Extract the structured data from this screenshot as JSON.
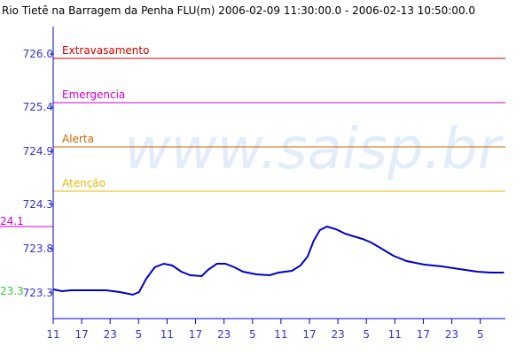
{
  "chart_data": {
    "type": "line",
    "title": "Rio Tietê na Barragem da Penha FLU(m) 2006-02-09 11:30:00.0 - 2006-02-13 10:50:00.0",
    "watermark": "www.saisp.br",
    "xlim": [
      0,
      95.3
    ],
    "ylim": [
      723.01,
      726.31
    ],
    "xticks": [
      {
        "value": 0,
        "label": "11"
      },
      {
        "value": 6,
        "label": "17"
      },
      {
        "value": 12,
        "label": "23"
      },
      {
        "value": 18,
        "label": "5"
      },
      {
        "value": 24,
        "label": "11"
      },
      {
        "value": 30,
        "label": "17"
      },
      {
        "value": 36,
        "label": "23"
      },
      {
        "value": 42,
        "label": "5"
      },
      {
        "value": 48,
        "label": "11"
      },
      {
        "value": 54,
        "label": "17"
      },
      {
        "value": 60,
        "label": "23"
      },
      {
        "value": 66,
        "label": "5"
      },
      {
        "value": 72,
        "label": "11"
      },
      {
        "value": 78,
        "label": "17"
      },
      {
        "value": 84,
        "label": "23"
      },
      {
        "value": 90,
        "label": "5"
      }
    ],
    "yticks": [
      {
        "value": 726,
        "label": "726.0"
      },
      725.4,
      724.9,
      724.3,
      723.8,
      723.3
    ],
    "thresholds": [
      {
        "name": "Extravasamento",
        "color": "#cc0000",
        "value": 725.95
      },
      {
        "name": "Emergencia",
        "color": "#cc00cc",
        "value": 725.45
      },
      {
        "name": "Alerta",
        "color": "#cc6600",
        "value": 724.95
      },
      {
        "name": "Atenção",
        "color": "#e6b800",
        "value": 724.45
      }
    ],
    "max_label": {
      "text": "24.1",
      "color": "#cc00cc"
    },
    "min_label": {
      "text": "23.3",
      "color": "#33cc33"
    },
    "series": [
      {
        "color": "#0000cc",
        "x": [
          0,
          1.9,
          3.7,
          11.2,
          14.0,
          16.8,
          18.1,
          19.6,
          21.4,
          23.3,
          25.1,
          27.0,
          28.9,
          31.3,
          32.6,
          34.5,
          36.3,
          38.2,
          40.0,
          42.8,
          45.6,
          47.5,
          50.3,
          52.1,
          53.6,
          54.9,
          56.2,
          57.7,
          59.6,
          61.5,
          63.3,
          65.2,
          67.0,
          68.9,
          71.7,
          74.5,
          78.2,
          81.9,
          85.6,
          89.4,
          92.2,
          95.0
        ],
        "values": [
          723.34,
          723.32,
          723.33,
          723.33,
          723.31,
          723.28,
          723.31,
          723.46,
          723.59,
          723.63,
          723.61,
          723.54,
          723.5,
          723.49,
          723.56,
          723.63,
          723.63,
          723.59,
          723.54,
          723.51,
          723.5,
          723.53,
          723.55,
          723.61,
          723.71,
          723.89,
          724.01,
          724.05,
          724.02,
          723.97,
          723.94,
          723.91,
          723.87,
          723.81,
          723.72,
          723.66,
          723.62,
          723.6,
          723.57,
          723.54,
          723.53,
          723.53
        ]
      }
    ]
  }
}
